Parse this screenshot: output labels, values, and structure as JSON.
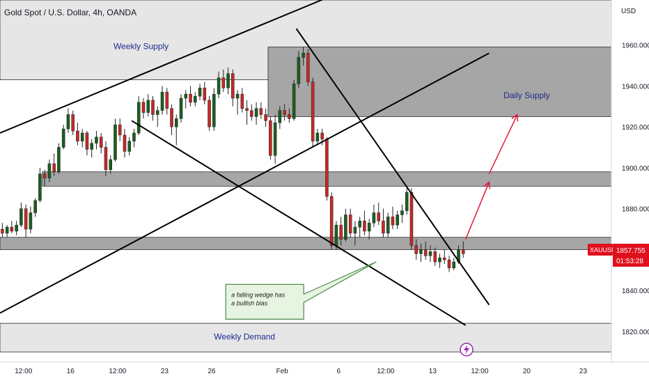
{
  "chart_data": {
    "type": "candlestick",
    "title": "Gold Spot / U.S. Dollar, 4h, OANDA",
    "currency": "USD",
    "symbol": "XAUUSD",
    "last_price": "1857.755",
    "countdown": "01:53:28",
    "y_range": [
      1805,
      1982
    ],
    "y_ticks": [
      "1960.000",
      "1940.000",
      "1920.000",
      "1900.000",
      "1880.000",
      "1860.000",
      "1840.000",
      "1820.000"
    ],
    "y_tick_values": [
      1960,
      1940,
      1920,
      1900,
      1880,
      1860,
      1840,
      1820
    ],
    "x_ticks": [
      "12:00",
      "16",
      "12:00",
      "23",
      "26",
      "Feb",
      "6",
      "12:00",
      "13",
      "12:00",
      "20",
      "23"
    ],
    "x_tick_bars": [
      5,
      15,
      25,
      35,
      45,
      60,
      72,
      82,
      92,
      102,
      112,
      124
    ],
    "x_range_bars": [
      0,
      130
    ],
    "zones": [
      {
        "name": "weekly-supply-zone",
        "bar_from": 0,
        "bar_to": 130,
        "y_from": 1943,
        "y_to": 1982,
        "color": "#e6e6e6"
      },
      {
        "name": "supply-dark-zone",
        "bar_from": 57,
        "bar_to": 130,
        "y_from": 1925,
        "y_to": 1959,
        "color": "#a6a6a6"
      },
      {
        "name": "level-1895-zone",
        "bar_from": 9,
        "bar_to": 130,
        "y_from": 1891,
        "y_to": 1898,
        "color": "#a6a6a6"
      },
      {
        "name": "level-1863-zone",
        "bar_from": 0,
        "bar_to": 130,
        "y_from": 1860,
        "y_to": 1866,
        "color": "#a6a6a6"
      },
      {
        "name": "weekly-demand-zone",
        "bar_from": 0,
        "bar_to": 130,
        "y_from": 1810,
        "y_to": 1824,
        "color": "#e6e6e6"
      }
    ],
    "trendlines": [
      {
        "name": "upper-channel-line",
        "from": [
          0,
          1917
        ],
        "to": [
          81,
          1994
        ]
      },
      {
        "name": "middle-rising-line",
        "from": [
          0,
          1829
        ],
        "to": [
          104,
          1956
        ]
      },
      {
        "name": "upper-descending-line",
        "from": [
          63,
          1968
        ],
        "to": [
          104,
          1833
        ]
      },
      {
        "name": "lower-descending-line",
        "from": [
          28,
          1923
        ],
        "to": [
          99,
          1823
        ]
      }
    ],
    "arrows": [
      {
        "name": "projection-arrow-1",
        "from": [
          99,
          1865
        ],
        "to": [
          104,
          1893
        ],
        "color": "#e0183a"
      },
      {
        "name": "projection-arrow-2",
        "from": [
          104,
          1897
        ],
        "to": [
          110,
          1926
        ],
        "color": "#e0183a"
      }
    ],
    "annotations": [
      {
        "text": "Weekly Supply",
        "bar": 30,
        "y": 1958,
        "color": "#1c2a8c"
      },
      {
        "text": "Daily Supply",
        "bar": 112,
        "y": 1934,
        "color": "#1c2a8c"
      },
      {
        "text": "Weekly Demand",
        "bar": 52,
        "y": 1816,
        "color": "#1c2a8c"
      }
    ],
    "callout": {
      "text": "a falling wedge has a bullish bias",
      "x_bar": 48,
      "y": 1843,
      "color": "#e6f4e1",
      "border": "#4c8a4c"
    },
    "candles": [
      {
        "o": 1870,
        "h": 1873,
        "l": 1866,
        "c": 1868
      },
      {
        "o": 1868,
        "h": 1872,
        "l": 1866,
        "c": 1871
      },
      {
        "o": 1871,
        "h": 1874,
        "l": 1868,
        "c": 1869
      },
      {
        "o": 1869,
        "h": 1874,
        "l": 1867,
        "c": 1872
      },
      {
        "o": 1872,
        "h": 1883,
        "l": 1871,
        "c": 1880
      },
      {
        "o": 1880,
        "h": 1882,
        "l": 1866,
        "c": 1870
      },
      {
        "o": 1870,
        "h": 1881,
        "l": 1868,
        "c": 1878
      },
      {
        "o": 1878,
        "h": 1885,
        "l": 1876,
        "c": 1884
      },
      {
        "o": 1884,
        "h": 1900,
        "l": 1883,
        "c": 1897
      },
      {
        "o": 1897,
        "h": 1899,
        "l": 1891,
        "c": 1895
      },
      {
        "o": 1895,
        "h": 1904,
        "l": 1893,
        "c": 1902
      },
      {
        "o": 1902,
        "h": 1907,
        "l": 1896,
        "c": 1898
      },
      {
        "o": 1898,
        "h": 1912,
        "l": 1897,
        "c": 1910
      },
      {
        "o": 1910,
        "h": 1921,
        "l": 1909,
        "c": 1919
      },
      {
        "o": 1919,
        "h": 1929,
        "l": 1917,
        "c": 1926
      },
      {
        "o": 1926,
        "h": 1928,
        "l": 1916,
        "c": 1918
      },
      {
        "o": 1918,
        "h": 1922,
        "l": 1911,
        "c": 1913
      },
      {
        "o": 1913,
        "h": 1919,
        "l": 1910,
        "c": 1917
      },
      {
        "o": 1917,
        "h": 1918,
        "l": 1906,
        "c": 1909
      },
      {
        "o": 1909,
        "h": 1914,
        "l": 1905,
        "c": 1912
      },
      {
        "o": 1912,
        "h": 1918,
        "l": 1909,
        "c": 1915
      },
      {
        "o": 1915,
        "h": 1917,
        "l": 1907,
        "c": 1910
      },
      {
        "o": 1910,
        "h": 1913,
        "l": 1896,
        "c": 1899
      },
      {
        "o": 1899,
        "h": 1906,
        "l": 1897,
        "c": 1904
      },
      {
        "o": 1904,
        "h": 1924,
        "l": 1903,
        "c": 1921
      },
      {
        "o": 1921,
        "h": 1924,
        "l": 1913,
        "c": 1916
      },
      {
        "o": 1916,
        "h": 1919,
        "l": 1905,
        "c": 1908
      },
      {
        "o": 1908,
        "h": 1915,
        "l": 1906,
        "c": 1913
      },
      {
        "o": 1913,
        "h": 1919,
        "l": 1910,
        "c": 1917
      },
      {
        "o": 1917,
        "h": 1935,
        "l": 1916,
        "c": 1932
      },
      {
        "o": 1932,
        "h": 1934,
        "l": 1924,
        "c": 1927
      },
      {
        "o": 1927,
        "h": 1936,
        "l": 1925,
        "c": 1933
      },
      {
        "o": 1933,
        "h": 1935,
        "l": 1923,
        "c": 1926
      },
      {
        "o": 1926,
        "h": 1930,
        "l": 1920,
        "c": 1928
      },
      {
        "o": 1928,
        "h": 1940,
        "l": 1926,
        "c": 1937
      },
      {
        "o": 1937,
        "h": 1939,
        "l": 1926,
        "c": 1929
      },
      {
        "o": 1929,
        "h": 1931,
        "l": 1916,
        "c": 1920
      },
      {
        "o": 1920,
        "h": 1926,
        "l": 1911,
        "c": 1924
      },
      {
        "o": 1924,
        "h": 1936,
        "l": 1922,
        "c": 1934
      },
      {
        "o": 1934,
        "h": 1938,
        "l": 1929,
        "c": 1936
      },
      {
        "o": 1936,
        "h": 1940,
        "l": 1930,
        "c": 1932
      },
      {
        "o": 1932,
        "h": 1937,
        "l": 1930,
        "c": 1935
      },
      {
        "o": 1935,
        "h": 1941,
        "l": 1933,
        "c": 1939
      },
      {
        "o": 1939,
        "h": 1942,
        "l": 1931,
        "c": 1933
      },
      {
        "o": 1933,
        "h": 1935,
        "l": 1918,
        "c": 1920
      },
      {
        "o": 1920,
        "h": 1939,
        "l": 1918,
        "c": 1936
      },
      {
        "o": 1936,
        "h": 1947,
        "l": 1934,
        "c": 1944
      },
      {
        "o": 1944,
        "h": 1948,
        "l": 1937,
        "c": 1939
      },
      {
        "o": 1939,
        "h": 1949,
        "l": 1936,
        "c": 1946
      },
      {
        "o": 1946,
        "h": 1948,
        "l": 1930,
        "c": 1934
      },
      {
        "o": 1934,
        "h": 1938,
        "l": 1926,
        "c": 1936
      },
      {
        "o": 1936,
        "h": 1939,
        "l": 1927,
        "c": 1929
      },
      {
        "o": 1929,
        "h": 1933,
        "l": 1921,
        "c": 1928
      },
      {
        "o": 1928,
        "h": 1931,
        "l": 1923,
        "c": 1925
      },
      {
        "o": 1925,
        "h": 1932,
        "l": 1921,
        "c": 1929
      },
      {
        "o": 1929,
        "h": 1932,
        "l": 1924,
        "c": 1926
      },
      {
        "o": 1926,
        "h": 1929,
        "l": 1920,
        "c": 1923
      },
      {
        "o": 1923,
        "h": 1925,
        "l": 1904,
        "c": 1906
      },
      {
        "o": 1906,
        "h": 1926,
        "l": 1902,
        "c": 1922
      },
      {
        "o": 1922,
        "h": 1930,
        "l": 1919,
        "c": 1928
      },
      {
        "o": 1928,
        "h": 1931,
        "l": 1923,
        "c": 1926
      },
      {
        "o": 1926,
        "h": 1929,
        "l": 1922,
        "c": 1924
      },
      {
        "o": 1924,
        "h": 1943,
        "l": 1923,
        "c": 1941
      },
      {
        "o": 1941,
        "h": 1957,
        "l": 1939,
        "c": 1954
      },
      {
        "o": 1954,
        "h": 1959,
        "l": 1950,
        "c": 1956
      },
      {
        "o": 1956,
        "h": 1958,
        "l": 1940,
        "c": 1942
      },
      {
        "o": 1942,
        "h": 1944,
        "l": 1910,
        "c": 1913
      },
      {
        "o": 1913,
        "h": 1919,
        "l": 1911,
        "c": 1917
      },
      {
        "o": 1917,
        "h": 1919,
        "l": 1911,
        "c": 1914
      },
      {
        "o": 1914,
        "h": 1915,
        "l": 1884,
        "c": 1886
      },
      {
        "o": 1886,
        "h": 1888,
        "l": 1860,
        "c": 1862
      },
      {
        "o": 1862,
        "h": 1874,
        "l": 1860,
        "c": 1872
      },
      {
        "o": 1872,
        "h": 1876,
        "l": 1862,
        "c": 1865
      },
      {
        "o": 1865,
        "h": 1880,
        "l": 1864,
        "c": 1877
      },
      {
        "o": 1877,
        "h": 1880,
        "l": 1866,
        "c": 1868
      },
      {
        "o": 1868,
        "h": 1874,
        "l": 1862,
        "c": 1871
      },
      {
        "o": 1871,
        "h": 1876,
        "l": 1866,
        "c": 1874
      },
      {
        "o": 1874,
        "h": 1879,
        "l": 1867,
        "c": 1869
      },
      {
        "o": 1869,
        "h": 1875,
        "l": 1865,
        "c": 1873
      },
      {
        "o": 1873,
        "h": 1882,
        "l": 1871,
        "c": 1878
      },
      {
        "o": 1878,
        "h": 1883,
        "l": 1872,
        "c": 1874
      },
      {
        "o": 1874,
        "h": 1880,
        "l": 1866,
        "c": 1868
      },
      {
        "o": 1868,
        "h": 1878,
        "l": 1866,
        "c": 1876
      },
      {
        "o": 1876,
        "h": 1881,
        "l": 1870,
        "c": 1872
      },
      {
        "o": 1872,
        "h": 1879,
        "l": 1870,
        "c": 1877
      },
      {
        "o": 1877,
        "h": 1882,
        "l": 1873,
        "c": 1879
      },
      {
        "o": 1879,
        "h": 1890,
        "l": 1877,
        "c": 1888
      },
      {
        "o": 1888,
        "h": 1890,
        "l": 1860,
        "c": 1862
      },
      {
        "o": 1862,
        "h": 1865,
        "l": 1855,
        "c": 1858
      },
      {
        "o": 1858,
        "h": 1863,
        "l": 1854,
        "c": 1860
      },
      {
        "o": 1860,
        "h": 1864,
        "l": 1855,
        "c": 1857
      },
      {
        "o": 1857,
        "h": 1862,
        "l": 1854,
        "c": 1859
      },
      {
        "o": 1859,
        "h": 1861,
        "l": 1852,
        "c": 1854
      },
      {
        "o": 1854,
        "h": 1858,
        "l": 1851,
        "c": 1856
      },
      {
        "o": 1856,
        "h": 1860,
        "l": 1853,
        "c": 1855
      },
      {
        "o": 1855,
        "h": 1857,
        "l": 1849,
        "c": 1851
      },
      {
        "o": 1851,
        "h": 1856,
        "l": 1850,
        "c": 1854
      },
      {
        "o": 1854,
        "h": 1862,
        "l": 1853,
        "c": 1860
      },
      {
        "o": 1860,
        "h": 1864,
        "l": 1856,
        "c": 1858
      }
    ]
  }
}
